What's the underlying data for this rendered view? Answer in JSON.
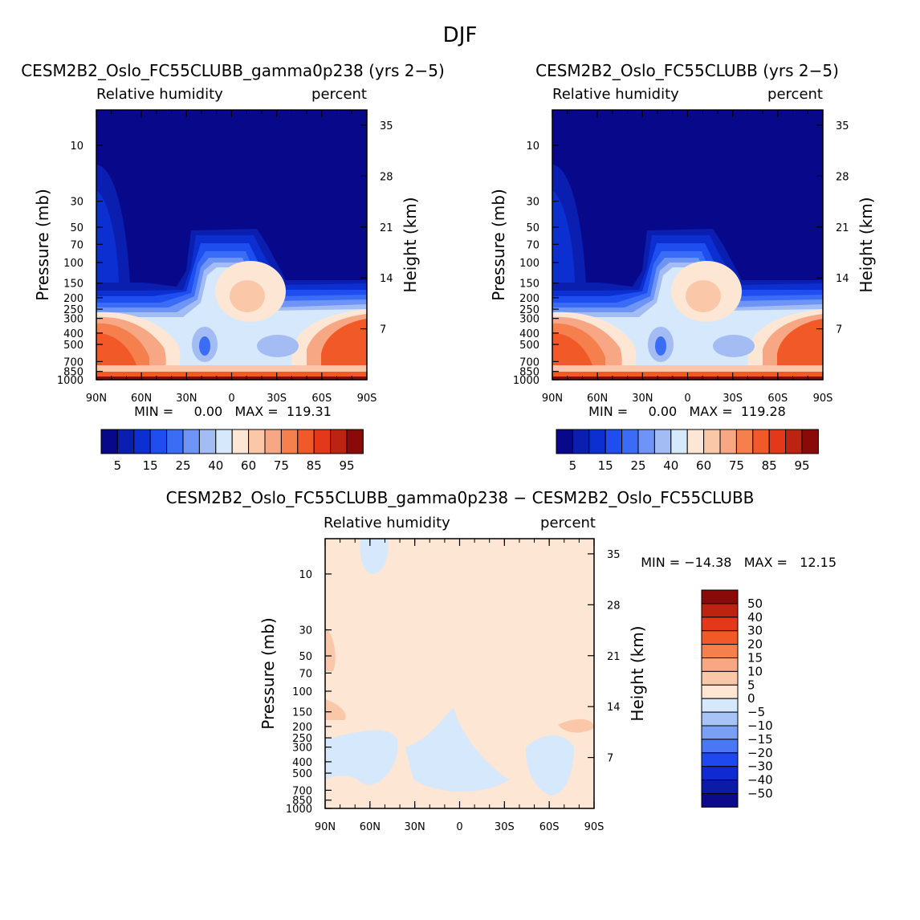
{
  "figure": {
    "title": "DJF"
  },
  "colors": {
    "rh_palette": [
      "#08088a",
      "#0a1fb0",
      "#0b2fd0",
      "#1e4ef0",
      "#3a6cf5",
      "#6e95f5",
      "#a3bdf4",
      "#d6e8fb",
      "#fde6d4",
      "#fbc7a9",
      "#f8a784",
      "#f5804e",
      "#f15a28",
      "#e3391a",
      "#bd2311",
      "#8a0a0a"
    ],
    "diff_palette": [
      "#0a0a8a",
      "#0c1aa8",
      "#0f2ad0",
      "#1e48f0",
      "#4a78f5",
      "#7aa0f5",
      "#a8c4f7",
      "#d6e8fb",
      "#fde6d4",
      "#fbc7a9",
      "#f8a784",
      "#f5804e",
      "#f15a28",
      "#e3391a",
      "#bd2311",
      "#8a0a0a"
    ]
  },
  "chart_data": [
    {
      "type": "heatmap",
      "title": "CESM2B2_Oslo_FC55CLUBB_gamma0p238 (yrs 2−5)",
      "left_label": "Relative humidity",
      "right_label": "percent",
      "xlabel": "",
      "ylabel": "Pressure (mb)",
      "y2label": "Height (km)",
      "x_ticklabels": [
        "90N",
        "60N",
        "30N",
        "0",
        "30S",
        "60S",
        "90S"
      ],
      "y_ticklabels": [
        "10",
        "30",
        "50",
        "70",
        "100",
        "150",
        "200",
        "250",
        "300",
        "400",
        "500",
        "700",
        "850",
        "1000"
      ],
      "y2_ticklabels": [
        "35",
        "28",
        "21",
        "14",
        "7"
      ],
      "ylim": [
        1000,
        5
      ],
      "y_scale": "log",
      "stats": "MIN =     0.00   MAX =  119.31",
      "colorbar": {
        "orientation": "horizontal",
        "labels": [
          "5",
          "15",
          "25",
          "40",
          "60",
          "75",
          "85",
          "95"
        ],
        "levels": [
          5,
          10,
          15,
          20,
          25,
          30,
          40,
          50,
          60,
          70,
          75,
          80,
          85,
          90,
          95
        ]
      }
    },
    {
      "type": "heatmap",
      "title": "CESM2B2_Oslo_FC55CLUBB (yrs 2−5)",
      "left_label": "Relative humidity",
      "right_label": "percent",
      "xlabel": "",
      "ylabel": "Pressure (mb)",
      "y2label": "Height (km)",
      "x_ticklabels": [
        "90N",
        "60N",
        "30N",
        "0",
        "30S",
        "60S",
        "90S"
      ],
      "y_ticklabels": [
        "10",
        "30",
        "50",
        "70",
        "100",
        "150",
        "200",
        "250",
        "300",
        "400",
        "500",
        "700",
        "850",
        "1000"
      ],
      "y2_ticklabels": [
        "35",
        "28",
        "21",
        "14",
        "7"
      ],
      "ylim": [
        1000,
        5
      ],
      "y_scale": "log",
      "stats": "MIN =     0.00   MAX =  119.28",
      "colorbar": {
        "orientation": "horizontal",
        "labels": [
          "5",
          "15",
          "25",
          "40",
          "60",
          "75",
          "85",
          "95"
        ],
        "levels": [
          5,
          10,
          15,
          20,
          25,
          30,
          40,
          50,
          60,
          70,
          75,
          80,
          85,
          90,
          95
        ]
      }
    },
    {
      "type": "heatmap",
      "title": "CESM2B2_Oslo_FC55CLUBB_gamma0p238 − CESM2B2_Oslo_FC55CLUBB",
      "left_label": "Relative humidity",
      "right_label": "percent",
      "xlabel": "",
      "ylabel": "Pressure (mb)",
      "y2label": "Height (km)",
      "x_ticklabels": [
        "90N",
        "60N",
        "30N",
        "0",
        "30S",
        "60S",
        "90S"
      ],
      "y_ticklabels": [
        "10",
        "30",
        "50",
        "70",
        "100",
        "150",
        "200",
        "250",
        "300",
        "400",
        "500",
        "700",
        "850",
        "1000"
      ],
      "y2_ticklabels": [
        "35",
        "28",
        "21",
        "14",
        "7"
      ],
      "ylim": [
        1000,
        5
      ],
      "y_scale": "log",
      "stats": "MIN = −14.38   MAX =   12.15",
      "colorbar": {
        "orientation": "vertical",
        "labels": [
          "50",
          "40",
          "30",
          "20",
          "15",
          "10",
          "5",
          "0",
          "−5",
          "−10",
          "−15",
          "−20",
          "−30",
          "−40",
          "−50"
        ],
        "levels": [
          50,
          40,
          30,
          20,
          15,
          10,
          5,
          0,
          -5,
          -10,
          -15,
          -20,
          -30,
          -40,
          -50
        ]
      }
    }
  ]
}
